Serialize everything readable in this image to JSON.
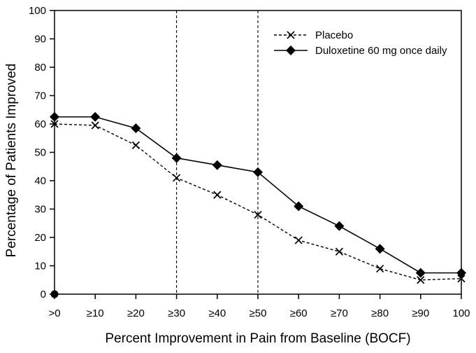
{
  "chart_data": {
    "type": "line",
    "title": "",
    "xlabel": "Percent Improvement in Pain from Baseline (BOCF)",
    "ylabel": "Percentage of Patients Improved",
    "categories": [
      ">0",
      "≥10",
      "≥20",
      "≥30",
      "≥40",
      "≥50",
      "≥60",
      "≥70",
      "≥80",
      "≥90",
      "100"
    ],
    "y_ticks": [
      0,
      10,
      20,
      30,
      40,
      50,
      60,
      70,
      80,
      90,
      100
    ],
    "ylim": [
      0,
      100
    ],
    "grid": "off",
    "frame": "box",
    "legend_position": "top-right-inside",
    "series": [
      {
        "name": "Placebo",
        "marker": "x-cross",
        "line_style": "dashed",
        "color": "#000000",
        "values": [
          60,
          59.5,
          52.5,
          41,
          35,
          28,
          19,
          15,
          9,
          5,
          5.5
        ]
      },
      {
        "name": "Duloxetine 60 mg once daily",
        "marker": "filled-diamond",
        "line_style": "solid",
        "color": "#000000",
        "values": [
          62.5,
          62.5,
          58.5,
          48,
          45.5,
          43,
          31,
          24,
          16,
          7.5,
          7.5
        ]
      }
    ],
    "reference_lines": {
      "style": "vertical-dashed",
      "at_categories": [
        "≥30",
        "≥50"
      ]
    },
    "origin_marker": {
      "shape": "filled-circle",
      "at_category": ">0",
      "value": 0
    },
    "colors": {
      "axis": "#000000",
      "text": "#000000",
      "background": "#ffffff"
    }
  }
}
